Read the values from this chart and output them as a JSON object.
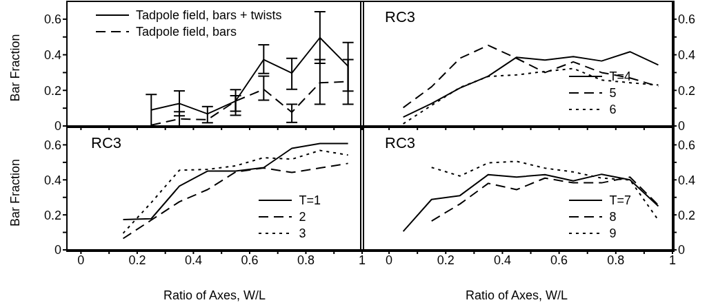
{
  "chart_data": [
    {
      "type": "line",
      "ylabel": "Bar Fraction",
      "x": [
        0.25,
        0.35,
        0.45,
        0.55,
        0.65,
        0.75,
        0.85,
        0.95
      ],
      "xlim": [
        -0.05,
        1.0
      ],
      "xticks": [
        {
          "value": 0,
          "label": null
        },
        {
          "value": 0.1,
          "label": null
        },
        {
          "value": 0.2,
          "label": null
        },
        {
          "value": 0.3,
          "label": null
        },
        {
          "value": 0.4,
          "label": null
        },
        {
          "value": 0.5,
          "label": null
        },
        {
          "value": 0.6,
          "label": null
        },
        {
          "value": 0.7,
          "label": null
        },
        {
          "value": 0.8,
          "label": null
        },
        {
          "value": 0.9,
          "label": null
        },
        {
          "value": 1,
          "label": null
        }
      ],
      "ylim": [
        0,
        0.7
      ],
      "yticks": [
        0,
        {
          "value": 0.1,
          "label": null
        },
        0.2,
        {
          "value": 0.3,
          "label": null
        },
        0.4,
        {
          "value": 0.5,
          "label": null
        },
        0.6
      ],
      "tick_labels": "y",
      "legend": "top left",
      "marker": "none",
      "series": [
        {
          "name": "Tadpole field, bars + twists",
          "color": "#000000",
          "line_style": "solid",
          "values": [
            0.09,
            0.126,
            0.068,
            0.14,
            0.373,
            0.297,
            0.496,
            0.336
          ],
          "errors": [
            [
              0,
              0.177
            ],
            [
              0.057,
              0.197
            ],
            [
              0.018,
              0.109
            ],
            [
              0.06,
              0.204
            ],
            [
              0.295,
              0.456
            ],
            [
              0.206,
              0.38
            ],
            [
              0.352,
              0.642
            ],
            [
              0.196,
              0.469
            ]
          ]
        },
        {
          "name": "Tadpole field, bars",
          "color": "#000000",
          "line_style": "dashed",
          "values": [
            0.005,
            0.04,
            0.035,
            0.14,
            0.206,
            0.077,
            0.243,
            0.249
          ],
          "errors": [
            null,
            [
              0,
              0.08
            ],
            null,
            [
              0.083,
              0.17
            ],
            [
              0.145,
              0.28
            ],
            [
              0.02,
              0.122
            ],
            [
              0.122,
              0.373
            ],
            [
              0.122,
              0.373
            ]
          ]
        }
      ]
    },
    {
      "type": "line",
      "annotations": [
        "RC3"
      ],
      "x": [
        0.05,
        0.15,
        0.25,
        0.35,
        0.45,
        0.55,
        0.65,
        0.75,
        0.85,
        0.95
      ],
      "xlim": [
        -0.1,
        1.0
      ],
      "xticks": [
        {
          "value": 0,
          "label": null
        },
        {
          "value": 0.1,
          "label": null
        },
        {
          "value": 0.2,
          "label": null
        },
        {
          "value": 0.3,
          "label": null
        },
        {
          "value": 0.4,
          "label": null
        },
        {
          "value": 0.5,
          "label": null
        },
        {
          "value": 0.6,
          "label": null
        },
        {
          "value": 0.7,
          "label": null
        },
        {
          "value": 0.8,
          "label": null
        },
        {
          "value": 0.9,
          "label": null
        },
        {
          "value": 1,
          "label": null
        }
      ],
      "ylim": [
        0,
        0.7
      ],
      "yticks": [
        0,
        {
          "value": 0.1,
          "label": null
        },
        0.2,
        {
          "value": 0.3,
          "label": null
        },
        0.4,
        {
          "value": 0.5,
          "label": null
        },
        0.6
      ],
      "tick_labels": "y",
      "legend": "bottom right",
      "marker": "none",
      "series": [
        {
          "name": "T=4",
          "color": "#000000",
          "line_style": "solid",
          "values": [
            0.05,
            0.126,
            0.213,
            0.28,
            0.386,
            0.37,
            0.39,
            0.365,
            0.417,
            0.343
          ]
        },
        {
          "name": "5",
          "color": "#000000",
          "line_style": "dashed",
          "values": [
            0.103,
            0.22,
            0.38,
            0.453,
            0.38,
            0.3,
            0.36,
            0.3,
            0.27,
            0.222
          ]
        },
        {
          "name": "6",
          "color": "#000000",
          "line_style": "dotted",
          "values": [
            0.012,
            0.116,
            0.216,
            0.278,
            0.287,
            0.306,
            0.323,
            0.258,
            0.243,
            0.23
          ]
        }
      ]
    },
    {
      "type": "line",
      "annotations": [
        "RC3"
      ],
      "xlabel": "Ratio of Axes, W/L",
      "ylabel": "Bar Fraction",
      "x": [
        0.15,
        0.25,
        0.35,
        0.45,
        0.55,
        0.65,
        0.75,
        0.85,
        0.95
      ],
      "xlim": [
        -0.05,
        1.0
      ],
      "xticks": [
        0,
        {
          "value": 0.1,
          "label": null
        },
        0.2,
        {
          "value": 0.3,
          "label": null
        },
        0.4,
        {
          "value": 0.5,
          "label": null
        },
        0.6,
        {
          "value": 0.7,
          "label": null
        },
        0.8,
        {
          "value": 0.9,
          "label": null
        },
        1
      ],
      "ylim": [
        0,
        0.7
      ],
      "yticks": [
        0,
        {
          "value": 0.1,
          "label": null
        },
        0.2,
        {
          "value": 0.3,
          "label": null
        },
        0.4,
        {
          "value": 0.5,
          "label": null
        },
        0.6
      ],
      "legend": "bottom right",
      "marker": "none",
      "series": [
        {
          "name": "T=1",
          "color": "#000000",
          "line_style": "solid",
          "values": [
            0.173,
            0.178,
            0.364,
            0.45,
            0.45,
            0.47,
            0.58,
            0.608,
            0.608
          ]
        },
        {
          "name": "2",
          "color": "#000000",
          "line_style": "dashed",
          "values": [
            0.065,
            0.17,
            0.275,
            0.344,
            0.445,
            0.468,
            0.442,
            0.468,
            0.494
          ]
        },
        {
          "name": "3",
          "color": "#000000",
          "line_style": "dotted",
          "values": [
            0.095,
            0.27,
            0.455,
            0.46,
            0.48,
            0.527,
            0.518,
            0.568,
            0.542
          ]
        }
      ]
    },
    {
      "type": "line",
      "annotations": [
        "RC3"
      ],
      "xlabel": "Ratio of Axes, W/L",
      "x": [
        0.05,
        0.15,
        0.25,
        0.35,
        0.45,
        0.55,
        0.65,
        0.75,
        0.85,
        0.95
      ],
      "xlim": [
        -0.1,
        1.0
      ],
      "xticks": [
        0,
        {
          "value": 0.1,
          "label": null
        },
        0.2,
        {
          "value": 0.3,
          "label": null
        },
        0.4,
        {
          "value": 0.5,
          "label": null
        },
        0.6,
        {
          "value": 0.7,
          "label": null
        },
        0.8,
        {
          "value": 0.9,
          "label": null
        },
        1
      ],
      "ylim": [
        0,
        0.7
      ],
      "yticks": [
        0,
        {
          "value": 0.1,
          "label": null
        },
        0.2,
        {
          "value": 0.3,
          "label": null
        },
        0.4,
        {
          "value": 0.5,
          "label": null
        },
        0.6
      ],
      "legend": "bottom right",
      "marker": "none",
      "series": [
        {
          "name": "T=7",
          "color": "#000000",
          "line_style": "solid",
          "values": [
            0.106,
            0.288,
            0.31,
            0.43,
            0.416,
            0.43,
            0.394,
            0.432,
            0.4,
            0.25
          ]
        },
        {
          "name": "8",
          "color": "#000000",
          "line_style": "dashed",
          "values": [
            null,
            0.165,
            0.262,
            0.38,
            0.344,
            0.41,
            0.383,
            0.383,
            0.416,
            0.256
          ]
        },
        {
          "name": "9",
          "color": "#000000",
          "line_style": "dotted",
          "values": [
            null,
            0.471,
            0.422,
            0.497,
            0.506,
            0.467,
            0.445,
            0.41,
            0.4,
            0.17
          ]
        }
      ]
    }
  ]
}
